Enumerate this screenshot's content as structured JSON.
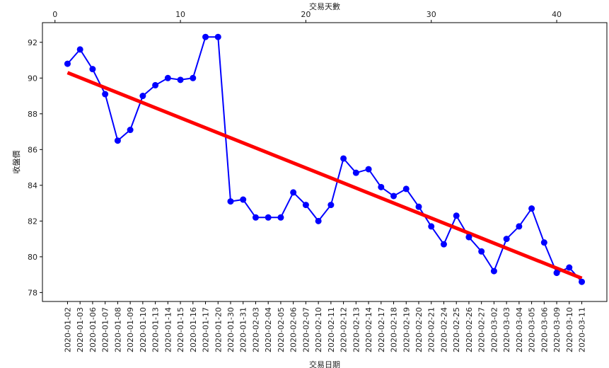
{
  "chart_data": {
    "type": "line",
    "title": "",
    "xlabel": "交易日期",
    "ylabel": "收盤價",
    "top_xlabel": "交易天數",
    "top_ticks": [
      0,
      10,
      20,
      30,
      40
    ],
    "top_xlim": [
      -1,
      44
    ],
    "ylim": [
      77.5,
      93.1
    ],
    "yticks": [
      78,
      80,
      82,
      84,
      86,
      88,
      90,
      92
    ],
    "grid": false,
    "legend": "none",
    "categories": [
      "2020-01-02",
      "2020-01-03",
      "2020-01-06",
      "2020-01-07",
      "2020-01-08",
      "2020-01-09",
      "2020-01-10",
      "2020-01-13",
      "2020-01-14",
      "2020-01-15",
      "2020-01-16",
      "2020-01-17",
      "2020-01-20",
      "2020-01-30",
      "2020-01-31",
      "2020-02-03",
      "2020-02-04",
      "2020-02-05",
      "2020-02-06",
      "2020-02-07",
      "2020-02-10",
      "2020-02-11",
      "2020-02-12",
      "2020-02-13",
      "2020-02-14",
      "2020-02-17",
      "2020-02-18",
      "2020-02-19",
      "2020-02-20",
      "2020-02-21",
      "2020-02-24",
      "2020-02-25",
      "2020-02-26",
      "2020-02-27",
      "2020-03-02",
      "2020-03-03",
      "2020-03-04",
      "2020-03-05",
      "2020-03-06",
      "2020-03-09",
      "2020-03-10",
      "2020-03-11"
    ],
    "x": [
      1,
      2,
      3,
      4,
      5,
      6,
      7,
      8,
      9,
      10,
      11,
      12,
      13,
      14,
      15,
      16,
      17,
      18,
      19,
      20,
      21,
      22,
      23,
      24,
      25,
      26,
      27,
      28,
      29,
      30,
      31,
      32,
      33,
      34,
      35,
      36,
      37,
      38,
      39,
      40,
      41,
      42
    ],
    "series": [
      {
        "values": [
          90.8,
          91.6,
          90.5,
          89.1,
          86.5,
          87.1,
          89.0,
          89.6,
          90.0,
          89.9,
          90.0,
          92.3,
          92.3,
          83.1,
          83.2,
          82.2,
          82.2,
          82.2,
          83.6,
          82.9,
          82.0,
          82.9,
          85.5,
          84.7,
          84.9,
          83.9,
          83.4,
          83.8,
          82.8,
          81.7,
          80.7,
          82.3,
          81.1,
          80.3,
          79.2,
          81.0,
          81.7,
          82.7,
          80.8,
          79.1,
          79.4,
          78.6
        ],
        "color": "#0000ff",
        "marker": "circle"
      },
      {
        "kind": "trend",
        "x": [
          1,
          42
        ],
        "values": [
          90.3,
          78.8
        ],
        "color": "#ff0000"
      }
    ]
  }
}
